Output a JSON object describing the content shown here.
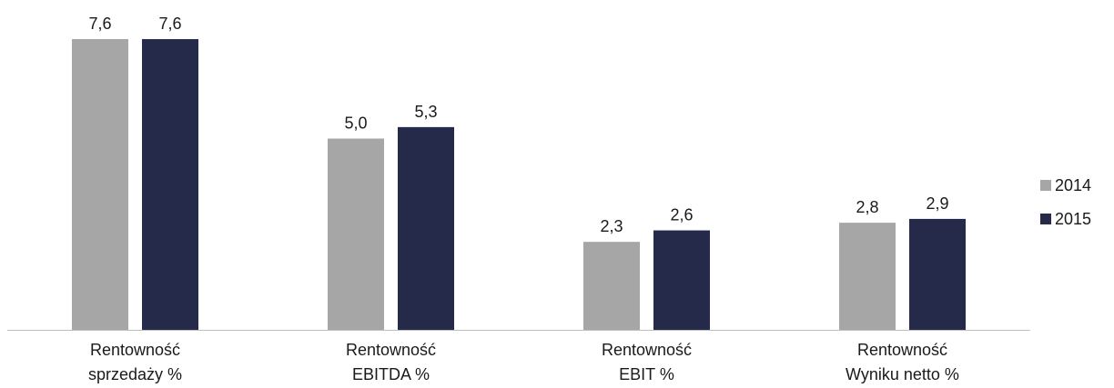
{
  "chart_data": {
    "type": "bar",
    "categories": [
      [
        "Rentowność",
        "sprzedaży %"
      ],
      [
        "Rentowność",
        "EBITDA %"
      ],
      [
        "Rentowność",
        "EBIT %"
      ],
      [
        "Rentowność",
        "Wyniku netto %"
      ]
    ],
    "series": [
      {
        "name": "2014",
        "color": "#a6a6a6",
        "values": [
          7.6,
          5.0,
          2.3,
          2.8
        ],
        "labels": [
          "7,6",
          "5,0",
          "2,3",
          "2,8"
        ]
      },
      {
        "name": "2015",
        "color": "#262a4a",
        "values": [
          7.6,
          5.3,
          2.6,
          2.9
        ],
        "labels": [
          "7,6",
          "5,3",
          "2,6",
          "2,9"
        ]
      }
    ],
    "ylim": [
      0,
      8
    ],
    "grid": false,
    "legend": "right",
    "title": "",
    "xlabel": "",
    "ylabel": ""
  }
}
